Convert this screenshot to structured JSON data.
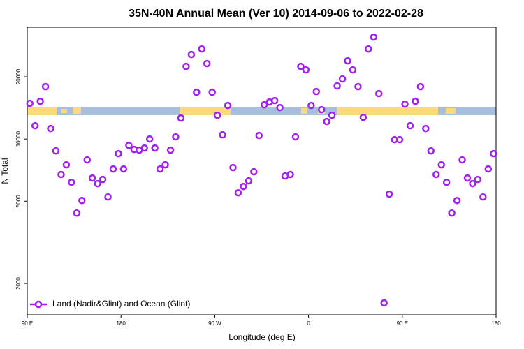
{
  "chart_data": {
    "type": "scatter",
    "title": "35N-40N Annual Mean (Ver 10)   2014-09-06 to 2022-02-28",
    "xlabel": "Longitude (deg E)",
    "ylabel": "N Total",
    "xlim": [
      90,
      540
    ],
    "ylim": [
      1410,
      34750
    ],
    "log_y": true,
    "xticks": [
      {
        "value": 90,
        "label": "90 E"
      },
      {
        "value": 180,
        "label": "180"
      },
      {
        "value": 270,
        "label": "90 W"
      },
      {
        "value": 360,
        "label": "0"
      },
      {
        "value": 450,
        "label": "90 E"
      },
      {
        "value": 540,
        "label": "180"
      }
    ],
    "yticks": [
      2000,
      5000,
      10000,
      20000
    ],
    "legend": "lower left",
    "series": [
      {
        "name": "Land (Nadir&Glint) and Ocean (Glint)",
        "color": "#a020f0",
        "x": [
          92.5,
          97.5,
          102.5,
          107.5,
          112.5,
          117.5,
          122.5,
          127.5,
          132.5,
          137.5,
          142.5,
          147.5,
          152.5,
          157.5,
          162.5,
          167.5,
          172.5,
          177.5,
          182.5,
          187.5,
          192.5,
          197.5,
          202.5,
          207.5,
          212.5,
          217.5,
          222.5,
          227.5,
          232.5,
          237.5,
          242.5,
          247.5,
          252.5,
          257.5,
          262.5,
          267.5,
          272.5,
          277.5,
          282.5,
          287.5,
          292.5,
          297.5,
          302.5,
          307.5,
          312.5,
          317.5,
          322.5,
          327.5,
          332.5,
          337.5,
          342.5,
          347.5,
          352.5,
          357.5,
          362.5,
          367.5,
          372.5,
          377.5,
          382.5,
          387.5,
          392.5,
          397.5,
          402.5,
          407.5,
          412.5,
          417.5,
          422.5,
          427.5,
          432.5,
          437.5,
          442.5,
          447.5,
          452.5,
          457.5,
          462.5,
          467.5,
          472.5,
          477.5,
          482.5,
          487.5,
          492.5,
          497.5,
          502.5,
          507.5,
          512.5,
          517.5,
          522.5,
          527.5,
          532.5,
          537.5
        ],
        "values": [
          14870,
          11590,
          15220,
          17920,
          11240,
          8760,
          6730,
          7500,
          6170,
          4380,
          5040,
          7920,
          6470,
          6080,
          6370,
          5240,
          7160,
          8490,
          7160,
          9320,
          8900,
          8830,
          9040,
          10000,
          9040,
          7160,
          7500,
          8830,
          10240,
          12630,
          22460,
          25640,
          16840,
          27290,
          23170,
          16840,
          13030,
          10480,
          14530,
          7270,
          5490,
          5890,
          6270,
          6940,
          10400,
          14640,
          15100,
          15340,
          14190,
          6620,
          6730,
          10240,
          22460,
          21600,
          14530,
          16970,
          13860,
          12150,
          13030,
          18060,
          19520,
          23900,
          21600,
          17920,
          12730,
          27290,
          31130,
          16580,
          1610,
          5410,
          9920,
          9920,
          14750,
          11590,
          15220,
          17920,
          11240,
          8760,
          6730,
          7500,
          6170,
          4380,
          5040,
          7920,
          6470,
          6080,
          6370,
          5240,
          7160,
          8490
        ]
      }
    ]
  }
}
